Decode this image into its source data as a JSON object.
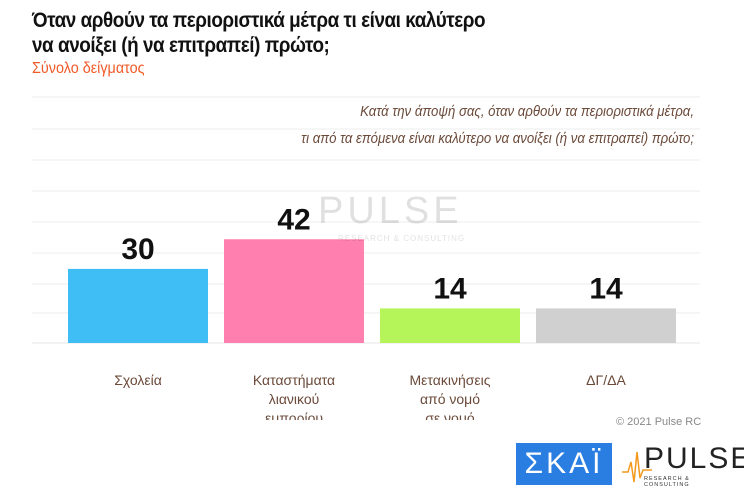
{
  "header": {
    "title_line1": "Όταν αρθούν τα περιοριστικά μέτρα τι είναι καλύτερο",
    "title_line2": "να ανοίξει (ή να επιτραπεί) πρώτο;",
    "subtitle": "Σύνολο δείγματος"
  },
  "question": {
    "line1": "Κατά την άποψή σας, όταν αρθούν τα περιοριστικά μέτρα,",
    "line2": "τι από τα επόμενα είναι καλύτερο να ανοίξει (ή να επιτραπεί) πρώτο;"
  },
  "chart_data": {
    "type": "bar",
    "title": "Όταν αρθούν τα περιοριστικά μέτρα τι είναι καλύτερο να ανοίξει (ή να επιτραπεί) πρώτο;",
    "categories": [
      [
        "Σχολεία"
      ],
      [
        "Καταστήματα",
        "λιανικού",
        "εμπορίου"
      ],
      [
        "Μετακινήσεις",
        "από νομό",
        "σε νομό"
      ],
      [
        "ΔΓ/ΔΑ"
      ]
    ],
    "values": [
      30,
      42,
      14,
      14
    ],
    "colors": [
      "#3fbdf5",
      "#ff7fae",
      "#b5f55a",
      "#d0d0d0"
    ],
    "ylim": [
      0,
      100
    ],
    "grid": true,
    "xlabel": "",
    "ylabel": ""
  },
  "footer": {
    "copyright": "© 2021 Pulse RC",
    "logo_skai": "ΣΚΑΪ",
    "logo_pulse": "PULSE",
    "logo_pulse_sub": "RESEARCH & CONSULTING",
    "watermark": "PULSE",
    "watermark_sub": "RESEARCH & CONSULTING"
  }
}
